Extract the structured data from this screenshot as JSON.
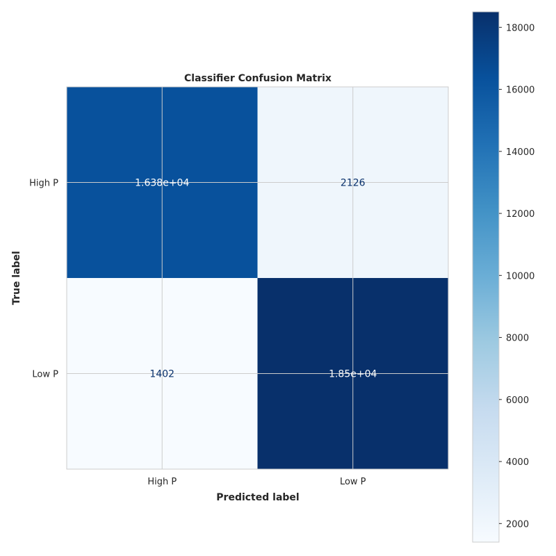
{
  "chart_data": {
    "type": "heatmap",
    "title": "Classifier Confusion Matrix",
    "xlabel": "Predicted label",
    "ylabel": "True label",
    "x_categories": [
      "High P",
      "Low P"
    ],
    "y_categories": [
      "High P",
      "Low P"
    ],
    "values": [
      [
        16380,
        2126
      ],
      [
        1402,
        18500
      ]
    ],
    "cell_labels": [
      [
        "1.638e+04",
        "2126"
      ],
      [
        "1402",
        "1.85e+04"
      ]
    ],
    "colormap": "Blues",
    "colorbar": {
      "min": 1402,
      "max": 18500,
      "ticks": [
        2000,
        4000,
        6000,
        8000,
        10000,
        12000,
        14000,
        16000,
        18000
      ],
      "tick_labels": [
        "2000",
        "4000",
        "6000",
        "8000",
        "10000",
        "12000",
        "14000",
        "16000",
        "18000"
      ]
    },
    "grid": true
  }
}
